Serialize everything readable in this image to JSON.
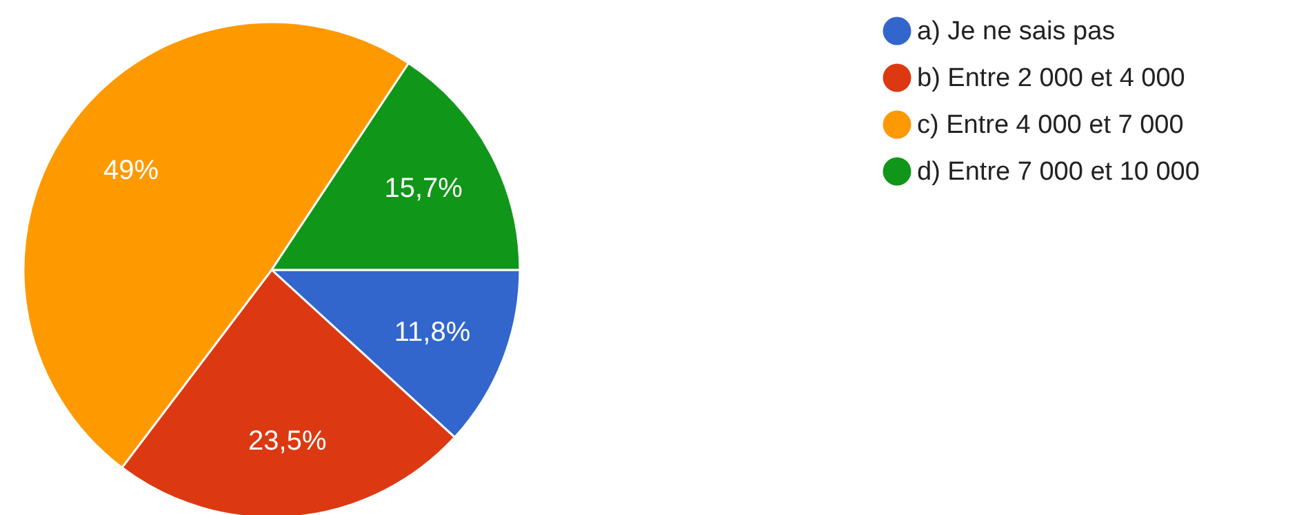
{
  "chart_data": {
    "type": "pie",
    "categories": [
      "a) Je ne sais pas",
      "b) Entre 2 000 et 4 000",
      "c) Entre 4 000 et 7 000",
      "d) Entre 7 000 et 10 000"
    ],
    "values": [
      11.8,
      23.5,
      49,
      15.7
    ],
    "colors": [
      "#3366cc",
      "#dc3912",
      "#ff9900",
      "#109618"
    ],
    "value_labels": [
      "11,8%",
      "23,5%",
      "49%",
      "15,7%"
    ],
    "legend": "right"
  }
}
